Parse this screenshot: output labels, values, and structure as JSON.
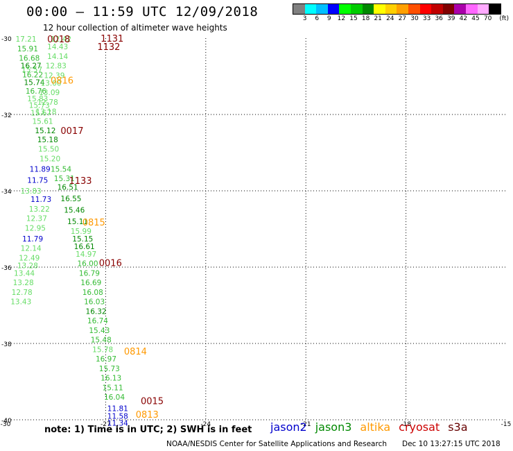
{
  "header": {
    "title": "00:00 – 11:59 UTC 12/09/2018",
    "subtitle": "12 hour collection of altimeter wave heights"
  },
  "colorbar": {
    "colors": [
      "#808080",
      "#00ffff",
      "#00bfff",
      "#0000ff",
      "#00ff00",
      "#00cc00",
      "#008800",
      "#ffff00",
      "#ffd000",
      "#ffa000",
      "#ff5000",
      "#ff0000",
      "#c00000",
      "#800000",
      "#aa00aa",
      "#ff66ff",
      "#ffaaff",
      "#000000"
    ],
    "labels": [
      "3",
      "6",
      "9",
      "12",
      "15",
      "18",
      "21",
      "24",
      "27",
      "30",
      "33",
      "36",
      "39",
      "42",
      "45",
      "70",
      "(ft)"
    ]
  },
  "note": "note:  1) Time is in UTC;  2) SWH is in feet",
  "satellites": [
    {
      "name": "jason2",
      "color": "#0000cc"
    },
    {
      "name": "jason3",
      "color": "#008800"
    },
    {
      "name": "altika",
      "color": "#ff9900"
    },
    {
      "name": "cryosat",
      "color": "#cc0000"
    },
    {
      "name": "s3a",
      "color": "#660000"
    }
  ],
  "footer": {
    "credit": "NOAA/NESDIS Center for Satellite Applications and Research",
    "timestamp": "Dec 10 13:27:15 UTC 2018"
  },
  "chart_data": {
    "type": "scatter",
    "xlim": [
      -30,
      -15
    ],
    "ylim": [
      -40,
      -30
    ],
    "xticks": [
      -30,
      -27,
      -24,
      -21,
      -18,
      -15
    ],
    "yticks": [
      -30,
      -32,
      -34,
      -36,
      -38,
      -40
    ],
    "xtick_labels": [
      "-30",
      "-27",
      "-24",
      "-21",
      "-18",
      "-15"
    ],
    "ytick_labels": [
      "-30",
      "-32",
      "-34",
      "-36",
      "-38",
      "-40"
    ],
    "grid": true,
    "track_colors": {
      "light": "#66dd66",
      "mid": "#33bb33",
      "dark": "#008800",
      "blue": "#0000cc"
    },
    "observations": [
      {
        "x": -29.7,
        "y": -30.02,
        "v": "17.21",
        "c": "light"
      },
      {
        "x": -29.65,
        "y": -30.27,
        "v": "15.91",
        "c": "mid"
      },
      {
        "x": -29.6,
        "y": -30.52,
        "v": "16.68",
        "c": "mid"
      },
      {
        "x": -29.55,
        "y": -30.72,
        "v": "16.27",
        "c": "dark"
      },
      {
        "x": -29.52,
        "y": -30.82,
        "v": "15.57",
        "c": "light"
      },
      {
        "x": -29.5,
        "y": -30.95,
        "v": "16.22",
        "c": "mid"
      },
      {
        "x": -29.45,
        "y": -31.15,
        "v": "15.74",
        "c": "dark"
      },
      {
        "x": -29.4,
        "y": -31.38,
        "v": "16.76",
        "c": "mid"
      },
      {
        "x": -29.35,
        "y": -31.58,
        "v": "15.83",
        "c": "light"
      },
      {
        "x": -29.3,
        "y": -31.75,
        "v": "15.73",
        "c": "light"
      },
      {
        "x": -29.25,
        "y": -31.95,
        "v": "15.67",
        "c": "light"
      },
      {
        "x": -29.2,
        "y": -32.17,
        "v": "15.61",
        "c": "light"
      },
      {
        "x": -29.12,
        "y": -32.42,
        "v": "15.12",
        "c": "dark"
      },
      {
        "x": -29.05,
        "y": -32.65,
        "v": "15.18",
        "c": "dark"
      },
      {
        "x": -29.02,
        "y": -32.9,
        "v": "15.50",
        "c": "light"
      },
      {
        "x": -28.98,
        "y": -33.15,
        "v": "15.20",
        "c": "light"
      },
      {
        "x": -28.65,
        "y": -33.43,
        "v": "15.54",
        "c": "mid"
      },
      {
        "x": -28.55,
        "y": -33.67,
        "v": "15.31",
        "c": "mid"
      },
      {
        "x": -28.45,
        "y": -33.9,
        "v": "16.51",
        "c": "dark"
      },
      {
        "x": -28.35,
        "y": -34.2,
        "v": "16.55",
        "c": "dark"
      },
      {
        "x": -28.25,
        "y": -34.5,
        "v": "15.46",
        "c": "dark"
      },
      {
        "x": -28.15,
        "y": -34.8,
        "v": "15.11",
        "c": "dark"
      },
      {
        "x": -28.05,
        "y": -35.05,
        "v": "15.99",
        "c": "light"
      },
      {
        "x": -28.0,
        "y": -35.25,
        "v": "15.15",
        "c": "dark"
      },
      {
        "x": -27.95,
        "y": -35.45,
        "v": "16.61",
        "c": "dark"
      },
      {
        "x": -27.9,
        "y": -35.65,
        "v": "14.97",
        "c": "light"
      },
      {
        "x": -27.85,
        "y": -35.9,
        "v": "16.00",
        "c": "mid"
      },
      {
        "x": -27.8,
        "y": -36.15,
        "v": "16.79",
        "c": "mid"
      },
      {
        "x": -27.75,
        "y": -36.4,
        "v": "16.69",
        "c": "mid"
      },
      {
        "x": -27.7,
        "y": -36.65,
        "v": "16.08",
        "c": "mid"
      },
      {
        "x": -27.65,
        "y": -36.9,
        "v": "16.03",
        "c": "mid"
      },
      {
        "x": -27.6,
        "y": -37.15,
        "v": "16.32",
        "c": "dark"
      },
      {
        "x": -27.55,
        "y": -37.4,
        "v": "16.74",
        "c": "mid"
      },
      {
        "x": -27.5,
        "y": -37.65,
        "v": "15.43",
        "c": "mid"
      },
      {
        "x": -27.45,
        "y": -37.9,
        "v": "15.48",
        "c": "mid"
      },
      {
        "x": -27.4,
        "y": -38.15,
        "v": "15.78",
        "c": "light"
      },
      {
        "x": -27.3,
        "y": -38.4,
        "v": "16.97",
        "c": "mid"
      },
      {
        "x": -27.2,
        "y": -38.65,
        "v": "15.73",
        "c": "mid"
      },
      {
        "x": -27.15,
        "y": -38.9,
        "v": "16.13",
        "c": "mid"
      },
      {
        "x": -27.1,
        "y": -39.15,
        "v": "15.11",
        "c": "mid"
      },
      {
        "x": -27.05,
        "y": -39.4,
        "v": "16.04",
        "c": "mid"
      },
      {
        "x": -26.95,
        "y": -39.7,
        "v": "11.81",
        "c": "blue"
      },
      {
        "x": -26.95,
        "y": -39.9,
        "v": "11.58",
        "c": "blue"
      },
      {
        "x": -26.95,
        "y": -40.08,
        "v": "11.34",
        "c": "blue"
      },
      {
        "x": -28.65,
        "y": -30.02,
        "v": "12.42",
        "c": "light"
      },
      {
        "x": -28.75,
        "y": -30.22,
        "v": "14.43",
        "c": "light"
      },
      {
        "x": -28.75,
        "y": -30.47,
        "v": "14.14",
        "c": "light"
      },
      {
        "x": -28.8,
        "y": -30.72,
        "v": "12.83",
        "c": "light"
      },
      {
        "x": -28.85,
        "y": -30.97,
        "v": "12.39",
        "c": "light"
      },
      {
        "x": -28.95,
        "y": -31.17,
        "v": "13.00",
        "c": "light"
      },
      {
        "x": -29.0,
        "y": -31.42,
        "v": "13.09",
        "c": "light"
      },
      {
        "x": -29.05,
        "y": -31.67,
        "v": "12.78",
        "c": "light"
      },
      {
        "x": -29.1,
        "y": -31.92,
        "v": "13.18",
        "c": "light"
      },
      {
        "x": -29.28,
        "y": -33.43,
        "v": "11.89",
        "c": "blue"
      },
      {
        "x": -29.35,
        "y": -33.72,
        "v": "11.75",
        "c": "blue"
      },
      {
        "x": -29.55,
        "y": -34.0,
        "v": "13.83",
        "c": "light"
      },
      {
        "x": -29.25,
        "y": -34.22,
        "v": "11.73",
        "c": "blue"
      },
      {
        "x": -29.3,
        "y": -34.47,
        "v": "13.22",
        "c": "light"
      },
      {
        "x": -29.38,
        "y": -34.72,
        "v": "12.37",
        "c": "light"
      },
      {
        "x": -29.42,
        "y": -34.97,
        "v": "12.95",
        "c": "light"
      },
      {
        "x": -29.5,
        "y": -35.25,
        "v": "11.79",
        "c": "blue"
      },
      {
        "x": -29.55,
        "y": -35.5,
        "v": "12.14",
        "c": "light"
      },
      {
        "x": -29.6,
        "y": -35.75,
        "v": "12.49",
        "c": "light"
      },
      {
        "x": -29.65,
        "y": -35.95,
        "v": "13.28",
        "c": "light"
      },
      {
        "x": -29.75,
        "y": -36.15,
        "v": "13.44",
        "c": "light"
      },
      {
        "x": -29.78,
        "y": -36.4,
        "v": "13.28",
        "c": "light"
      },
      {
        "x": -29.82,
        "y": -36.65,
        "v": "12.78",
        "c": "light"
      },
      {
        "x": -29.85,
        "y": -36.9,
        "v": "13.43",
        "c": "light"
      }
    ],
    "time_labels": [
      {
        "x": -28.75,
        "y": -30.02,
        "t": "0018",
        "c": "#880000"
      },
      {
        "x": -27.15,
        "y": -30.0,
        "t": "1131",
        "c": "#880000"
      },
      {
        "x": -27.25,
        "y": -30.22,
        "t": "1132",
        "c": "#880000"
      },
      {
        "x": -28.65,
        "y": -31.1,
        "t": "0816",
        "c": "#ff9900"
      },
      {
        "x": -28.35,
        "y": -32.42,
        "t": "0017",
        "c": "#880000"
      },
      {
        "x": -28.1,
        "y": -33.73,
        "t": "1133",
        "c": "#880000"
      },
      {
        "x": -27.7,
        "y": -34.82,
        "t": "0815",
        "c": "#ff9900"
      },
      {
        "x": -27.2,
        "y": -35.88,
        "t": "0016",
        "c": "#880000"
      },
      {
        "x": -26.45,
        "y": -38.2,
        "t": "0814",
        "c": "#ff9900"
      },
      {
        "x": -25.95,
        "y": -39.5,
        "t": "0015",
        "c": "#880000"
      },
      {
        "x": -26.1,
        "y": -39.85,
        "t": "0813",
        "c": "#ff9900"
      }
    ]
  }
}
